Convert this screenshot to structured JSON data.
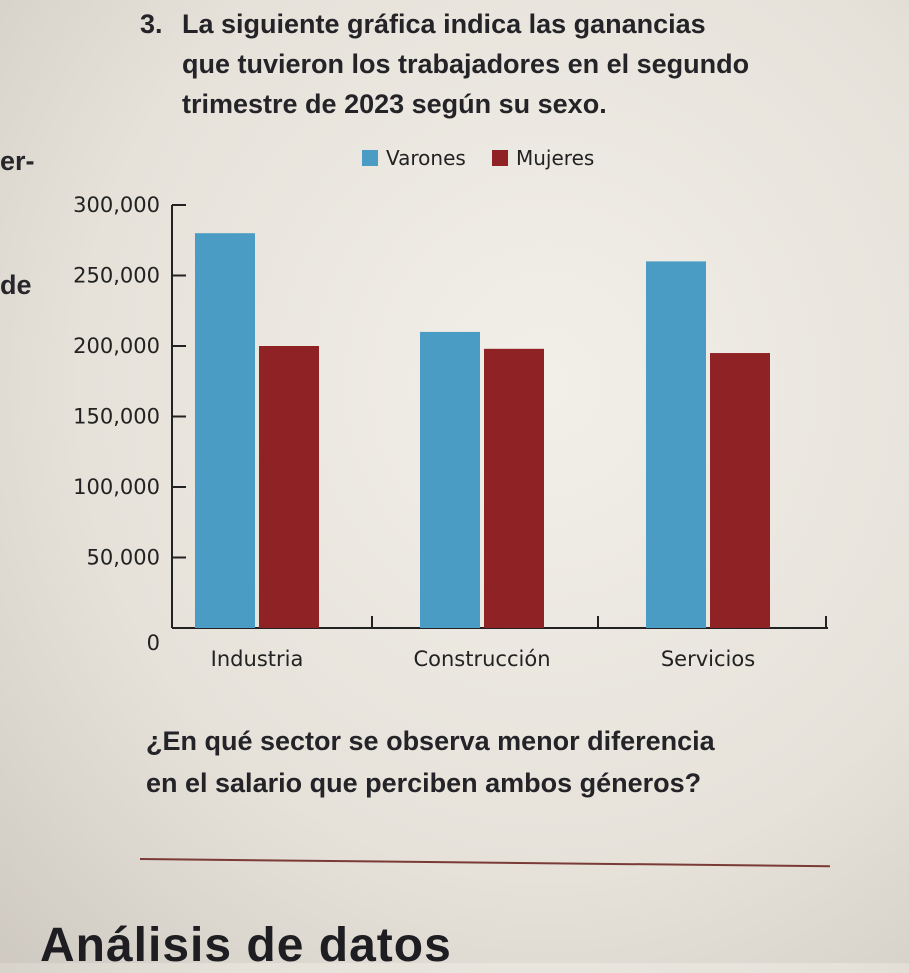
{
  "question": {
    "number": "3.",
    "lines": [
      "La siguiente gráfica indica las ganancias",
      "que tuvieron los trabajadores en el segundo",
      "trimestre de 2023 según su sexo."
    ]
  },
  "margin_fragments": [
    "er-",
    "de"
  ],
  "chart_data": {
    "type": "bar",
    "title": "",
    "xlabel": "",
    "ylabel": "",
    "categories": [
      "Industria",
      "Construcción",
      "Servicios"
    ],
    "series": [
      {
        "name": "Varones",
        "color": "#4a9cc4",
        "values": [
          280000,
          210000,
          260000
        ]
      },
      {
        "name": "Mujeres",
        "color": "#8e2224",
        "values": [
          200000,
          198000,
          195000
        ]
      }
    ],
    "ylim": [
      0,
      300000
    ],
    "yticks": [
      0,
      50000,
      100000,
      150000,
      200000,
      250000,
      300000
    ],
    "ytick_labels": [
      "0",
      "50,000",
      "100,000",
      "150,000",
      "200,000",
      "250,000",
      "300,000"
    ],
    "legend_position": "top"
  },
  "followup": {
    "lines": [
      "¿En qué sector se observa menor diferencia",
      "en el salario que perciben ambos géneros?"
    ]
  },
  "section_title": "Análisis de datos"
}
